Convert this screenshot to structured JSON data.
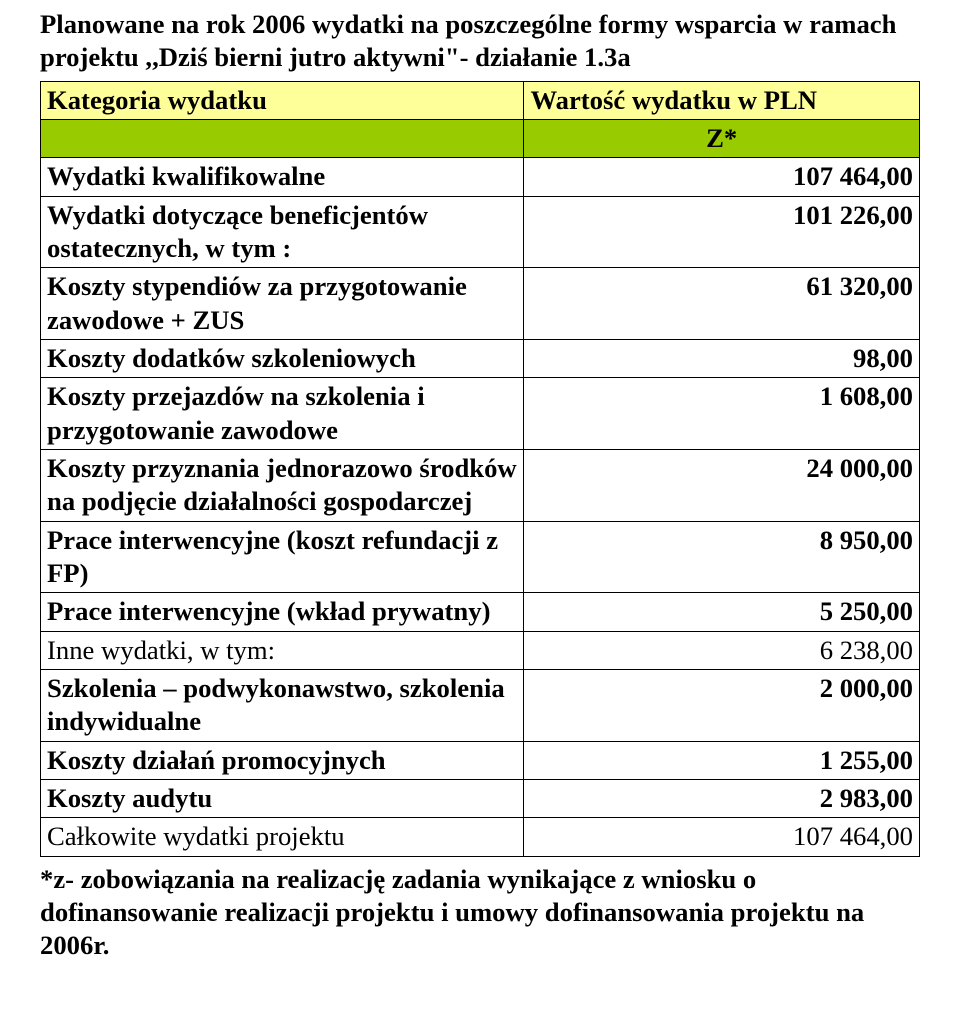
{
  "title_fontsize_pt": 20,
  "cell_fontsize_pt": 20,
  "footnote_fontsize_pt": 20,
  "colors": {
    "header_bg": "#ffff99",
    "z_bg": "#99cc00",
    "border": "#000000",
    "text": "#000000",
    "page_bg": "#ffffff"
  },
  "title": "Planowane na rok 2006 wydatki na poszczególne formy wsparcia w ramach projektu ,,Dziś bierni jutro aktywni\"- działanie 1.3a",
  "header": {
    "left": "Kategoria wydatku",
    "right": "Wartość wydatku w PLN"
  },
  "z_label": "Z*",
  "rows": [
    {
      "label": "Wydatki kwalifikowalne",
      "value": "107 464,00",
      "bold": true
    },
    {
      "label": "Wydatki dotyczące beneficjentów ostatecznych, w tym :",
      "value": "101 226,00",
      "bold": true
    },
    {
      "label": "Koszty stypendiów za przygotowanie zawodowe + ZUS",
      "value": "61 320,00",
      "bold": true
    },
    {
      "label": "Koszty dodatków szkoleniowych",
      "value": "98,00",
      "bold": true
    },
    {
      "label": "Koszty przejazdów na szkolenia i przygotowanie zawodowe",
      "value": "1 608,00",
      "bold": true
    },
    {
      "label": "Koszty przyznania jednorazowo środków na podjęcie działalności gospodarczej",
      "value": "24 000,00",
      "bold": true
    },
    {
      "label": "Prace interwencyjne (koszt refundacji z FP)",
      "value": "8 950,00",
      "bold": true
    },
    {
      "label": "Prace interwencyjne (wkład prywatny)",
      "value": "5 250,00",
      "bold": true
    },
    {
      "label": "Inne wydatki, w tym:",
      "value": "6 238,00",
      "bold": false
    },
    {
      "label": "Szkolenia – podwykonawstwo, szkolenia indywidualne",
      "value": "2 000,00",
      "bold": true
    },
    {
      "label": "Koszty działań promocyjnych",
      "value": "1 255,00",
      "bold": true
    },
    {
      "label": "Koszty audytu",
      "value": "2 983,00",
      "bold": true
    },
    {
      "label": "Całkowite wydatki projektu",
      "value": "107 464,00",
      "bold": false
    }
  ],
  "footnote": "*z- zobowiązania na realizację zadania wynikające z wniosku o dofinansowanie realizacji projektu i umowy dofinansowania projektu na 2006r."
}
